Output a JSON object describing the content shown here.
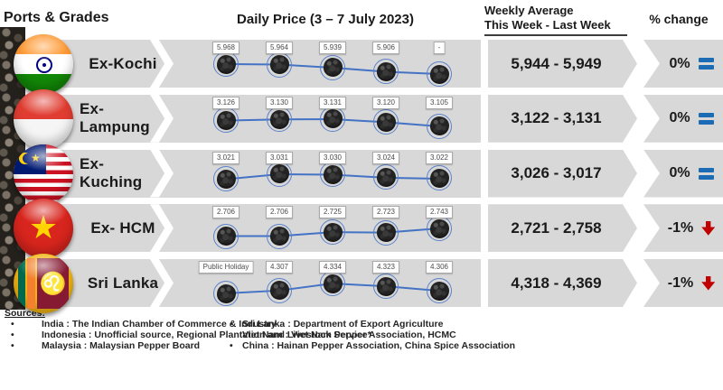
{
  "header": {
    "col_ports": "Ports & Grades",
    "col_daily": "Daily Price (3 – 7 July 2023)",
    "col_weekly_line1": "Weekly Average",
    "col_weekly_line2": "This Week - Last Week",
    "col_change": "% change"
  },
  "colors": {
    "band_grey": "#d8d8d8",
    "line_blue": "#4472c4",
    "equal_blue": "#1b6cb5",
    "down_red": "#c00000"
  },
  "icons": {
    "star_glyph": "★",
    "lion_glyph": "♌"
  },
  "rows": [
    {
      "port": "Ex-Kochi",
      "flag": "india",
      "points": [
        {
          "label": "5.968",
          "value": 5968
        },
        {
          "label": "5.964",
          "value": 5964
        },
        {
          "label": "5.939",
          "value": 5939
        },
        {
          "label": "5.906",
          "value": 5906
        },
        {
          "label": "-",
          "value": null
        }
      ],
      "weekly": "5,944 - 5,949",
      "change": "0%",
      "trend": "equal"
    },
    {
      "port": "Ex-Lampung",
      "flag": "indonesia",
      "points": [
        {
          "label": "3.126",
          "value": 3126
        },
        {
          "label": "3.130",
          "value": 3130
        },
        {
          "label": "3.131",
          "value": 3131
        },
        {
          "label": "3.120",
          "value": 3120
        },
        {
          "label": "3.105",
          "value": 3105
        }
      ],
      "weekly": "3,122 - 3,131",
      "change": "0%",
      "trend": "equal"
    },
    {
      "port": "Ex-Kuching",
      "flag": "malaysia",
      "points": [
        {
          "label": "3.021",
          "value": 3021
        },
        {
          "label": "3.031",
          "value": 3031
        },
        {
          "label": "3.030",
          "value": 3030
        },
        {
          "label": "3.024",
          "value": 3024
        },
        {
          "label": "3.022",
          "value": 3022
        }
      ],
      "weekly": "3,026 - 3,017",
      "change": "0%",
      "trend": "equal"
    },
    {
      "port": "Ex- HCM",
      "flag": "vietnam",
      "points": [
        {
          "label": "2.706",
          "value": 2706
        },
        {
          "label": "2.706",
          "value": 2706
        },
        {
          "label": "2.725",
          "value": 2725
        },
        {
          "label": "2.723",
          "value": 2723
        },
        {
          "label": "2.743",
          "value": 2743
        }
      ],
      "weekly": "2,721 - 2,758",
      "change": "-1%",
      "trend": "down"
    },
    {
      "port": "Sri Lanka",
      "flag": "srilanka",
      "points": [
        {
          "label": "Public Holiday",
          "value": null
        },
        {
          "label": "4.307",
          "value": 4307
        },
        {
          "label": "4.334",
          "value": 4334
        },
        {
          "label": "4.323",
          "value": 4323
        },
        {
          "label": "4.306",
          "value": 4306
        }
      ],
      "weekly": "4,318 - 4,369",
      "change": "-1%",
      "trend": "down"
    }
  ],
  "chart_data": {
    "type": "line",
    "title": "Daily Price (3 – 7 July 2023)",
    "x_points_per_series": 5,
    "series": [
      {
        "name": "Ex-Kochi",
        "values": [
          5968,
          5964,
          5939,
          5906,
          null
        ],
        "point_labels": [
          "5.968",
          "5.964",
          "5.939",
          "5.906",
          "-"
        ]
      },
      {
        "name": "Ex-Lampung",
        "values": [
          3126,
          3130,
          3131,
          3120,
          3105
        ],
        "point_labels": [
          "3.126",
          "3.130",
          "3.131",
          "3.120",
          "3.105"
        ]
      },
      {
        "name": "Ex-Kuching",
        "values": [
          3021,
          3031,
          3030,
          3024,
          3022
        ],
        "point_labels": [
          "3.021",
          "3.031",
          "3.030",
          "3.024",
          "3.022"
        ]
      },
      {
        "name": "Ex- HCM",
        "values": [
          2706,
          2706,
          2725,
          2723,
          2743
        ],
        "point_labels": [
          "2.706",
          "2.706",
          "2.725",
          "2.723",
          "2.743"
        ]
      },
      {
        "name": "Sri Lanka",
        "values": [
          null,
          4307,
          4334,
          4323,
          4306
        ],
        "point_labels": [
          "Public Holiday",
          "4.307",
          "4.334",
          "4.323",
          "4.306"
        ]
      }
    ],
    "weekly_average": [
      {
        "port": "Ex-Kochi",
        "this_week": 5944,
        "last_week": 5949,
        "pct_change": "0%"
      },
      {
        "port": "Ex-Lampung",
        "this_week": 3122,
        "last_week": 3131,
        "pct_change": "0%"
      },
      {
        "port": "Ex-Kuching",
        "this_week": 3026,
        "last_week": 3017,
        "pct_change": "0%"
      },
      {
        "port": "Ex- HCM",
        "this_week": 2721,
        "last_week": 2758,
        "pct_change": "-1%"
      },
      {
        "port": "Sri Lanka",
        "this_week": 4318,
        "last_week": 4369,
        "pct_change": "-1%"
      }
    ],
    "legend_position": "none",
    "grid": false
  },
  "sources": {
    "title": "Sources:",
    "left": [
      {
        "bullet": "•",
        "text": "India : The Indian Chamber of Commerce & Industry"
      },
      {
        "bullet": "•",
        "text": "Indonesia : Unofficial source, Regional Plantation and Livestock Service*"
      },
      {
        "bullet": "•",
        "text": "Malaysia : Malaysian Pepper Board"
      }
    ],
    "right": [
      {
        "bullet": "•",
        "text": "Sri Lanka : Department of Export Agriculture"
      },
      {
        "bullet": "",
        "text": "Viet Nam : Viet Nam Pepper Association, HCMC"
      },
      {
        "bullet": "•",
        "text": "China : Hainan Pepper Association, China Spice Association"
      }
    ]
  }
}
